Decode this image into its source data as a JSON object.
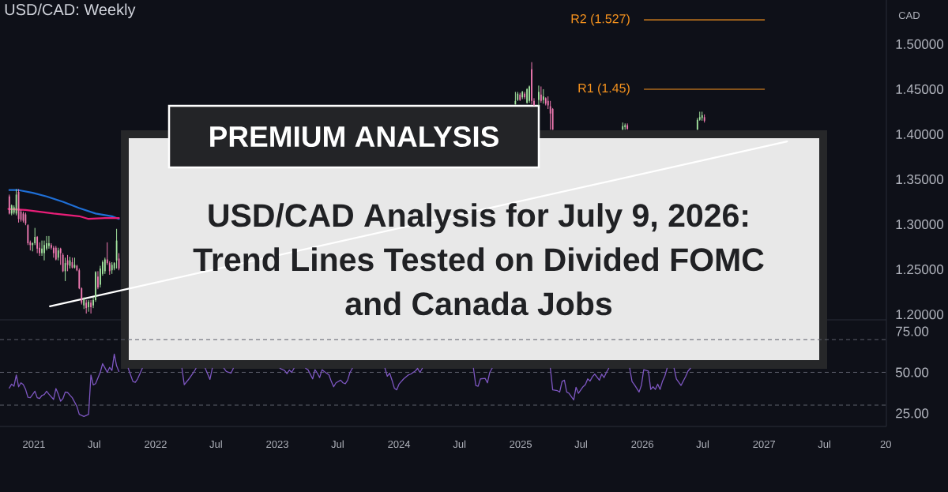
{
  "chart_data": [
    {
      "type": "candlestick",
      "title": "USD/CAD Analysis for July 9, 2026: Trend Lines Tested on Divided FOMC and Canada Jobs",
      "subtitle": "USD/CAD: Weekly",
      "annotations": [
        "PREMIUM ANALYSIS"
      ],
      "ylabel": "CAD",
      "xlim": [
        "2020-09-21",
        "2028-01-03"
      ],
      "ylim": [
        1.194,
        1.549
      ],
      "yticks": [
        {
          "value": 1.2,
          "label": "1.20000"
        },
        {
          "value": 1.25,
          "label": "1.25000"
        },
        {
          "value": 1.3,
          "label": "1.30000"
        },
        {
          "value": 1.35,
          "label": "1.35000"
        },
        {
          "value": 1.4,
          "label": "1.40000"
        },
        {
          "value": 1.45,
          "label": "1.45000"
        },
        {
          "value": 1.5,
          "label": "1.50000"
        }
      ],
      "tick_labels": "y",
      "ref_lines": [
        {
          "axis": "y",
          "value": 1.527,
          "label": "R2 (1.527)",
          "color": "#f7931e"
        },
        {
          "axis": "y",
          "value": 1.45,
          "label": "R1 (1.45)",
          "color": "#f7931e"
        }
      ],
      "series": [
        {
          "type": "line",
          "color": "#1f6fd6",
          "x": [
            "2020-10-19",
            "2020-11-16",
            "2020-12-28",
            "2021-02-08",
            "2021-03-29",
            "2021-05-17",
            "2021-07-05",
            "2021-08-23",
            "2021-09-13"
          ],
          "values": [
            1.338,
            1.338,
            1.335,
            1.331,
            1.325,
            1.318,
            1.312,
            1.309,
            1.306
          ]
        },
        {
          "type": "line",
          "color": "#e91e78",
          "x": [
            "2020-10-16",
            "2020-12-07",
            "2021-03-01",
            "2021-05-17",
            "2021-06-14",
            "2021-08-02",
            "2021-09-13"
          ],
          "values": [
            1.317,
            1.316,
            1.312,
            1.309,
            1.306,
            1.307,
            1.307
          ]
        },
        {
          "type": "line",
          "color": "#ffffff",
          "x": [
            "2021-02-18",
            "2027-03-11"
          ],
          "values": [
            1.209,
            1.392
          ]
        },
        {
          "type": "candlestick",
          "x": [
            "2020-10-19",
            "2020-10-26",
            "2020-11-02",
            "2020-11-09",
            "2020-11-16",
            "2020-11-23",
            "2020-11-30",
            "2020-12-07",
            "2020-12-14",
            "2020-12-21",
            "2020-12-28",
            "2021-01-04",
            "2021-01-11",
            "2021-01-18",
            "2021-01-25",
            "2021-02-01",
            "2021-02-08",
            "2021-02-15",
            "2021-02-22",
            "2021-03-01",
            "2021-03-08",
            "2021-03-15",
            "2021-03-22",
            "2021-03-29",
            "2021-04-05",
            "2021-04-12",
            "2021-04-19",
            "2021-04-26",
            "2021-05-03",
            "2021-05-10",
            "2021-05-17",
            "2021-05-24",
            "2021-05-31",
            "2021-06-07",
            "2021-06-14",
            "2021-06-21",
            "2021-06-28",
            "2021-07-05",
            "2021-07-12",
            "2021-07-19",
            "2021-07-26",
            "2021-08-02",
            "2021-08-09",
            "2021-08-16",
            "2021-08-23",
            "2021-08-30",
            "2021-09-06",
            "2021-09-13",
            "2024-12-16",
            "2024-12-23",
            "2024-12-30",
            "2025-01-06",
            "2025-01-13",
            "2025-01-20",
            "2025-01-27",
            "2025-02-03",
            "2025-02-10",
            "2025-02-24",
            "2025-03-03",
            "2025-03-10",
            "2025-03-17",
            "2025-03-24",
            "2025-03-31",
            "2025-04-07",
            "2025-11-03",
            "2025-11-10",
            "2025-11-17",
            "2026-06-15",
            "2026-06-22",
            "2026-06-29",
            "2026-07-06"
          ],
          "ohlc": [
            [
              1.331,
              1.333,
              1.311,
              1.312
            ],
            [
              1.312,
              1.322,
              1.31,
              1.321
            ],
            [
              1.313,
              1.321,
              1.311,
              1.319
            ],
            [
              1.312,
              1.339,
              1.31,
              1.333
            ],
            [
              1.336,
              1.339,
              1.302,
              1.306
            ],
            [
              1.314,
              1.316,
              1.303,
              1.305
            ],
            [
              1.312,
              1.314,
              1.302,
              1.304
            ],
            [
              1.311,
              1.313,
              1.299,
              1.301
            ],
            [
              1.299,
              1.3,
              1.277,
              1.279
            ],
            [
              1.28,
              1.282,
              1.271,
              1.277
            ],
            [
              1.277,
              1.28,
              1.27,
              1.279
            ],
            [
              1.279,
              1.296,
              1.277,
              1.286
            ],
            [
              1.286,
              1.287,
              1.268,
              1.273
            ],
            [
              1.274,
              1.28,
              1.265,
              1.268
            ],
            [
              1.268,
              1.282,
              1.265,
              1.273
            ],
            [
              1.268,
              1.282,
              1.26,
              1.277
            ],
            [
              1.273,
              1.287,
              1.271,
              1.279
            ],
            [
              1.276,
              1.287,
              1.273,
              1.279
            ],
            [
              1.277,
              1.279,
              1.272,
              1.274
            ],
            [
              1.274,
              1.276,
              1.263,
              1.268
            ],
            [
              1.274,
              1.276,
              1.26,
              1.261
            ],
            [
              1.263,
              1.274,
              1.26,
              1.271
            ],
            [
              1.273,
              1.274,
              1.255,
              1.268
            ],
            [
              1.266,
              1.268,
              1.247,
              1.248
            ],
            [
              1.248,
              1.263,
              1.237,
              1.257
            ],
            [
              1.26,
              1.266,
              1.248,
              1.255
            ],
            [
              1.254,
              1.264,
              1.251,
              1.26
            ],
            [
              1.258,
              1.263,
              1.251,
              1.252
            ],
            [
              1.252,
              1.263,
              1.251,
              1.255
            ],
            [
              1.254,
              1.255,
              1.248,
              1.249
            ],
            [
              1.249,
              1.251,
              1.228,
              1.229
            ],
            [
              1.229,
              1.23,
              1.211,
              1.213
            ],
            [
              1.21,
              1.219,
              1.206,
              1.217
            ],
            [
              1.213,
              1.216,
              1.201,
              1.207
            ],
            [
              1.208,
              1.216,
              1.203,
              1.214
            ],
            [
              1.213,
              1.216,
              1.201,
              1.208
            ],
            [
              1.21,
              1.219,
              1.207,
              1.216
            ],
            [
              1.216,
              1.248,
              1.214,
              1.247
            ],
            [
              1.242,
              1.248,
              1.228,
              1.23
            ],
            [
              1.233,
              1.254,
              1.23,
              1.251
            ],
            [
              1.245,
              1.26,
              1.243,
              1.258
            ],
            [
              1.248,
              1.263,
              1.245,
              1.261
            ],
            [
              1.261,
              1.28,
              1.255,
              1.257
            ],
            [
              1.257,
              1.259,
              1.244,
              1.248
            ],
            [
              1.249,
              1.258,
              1.245,
              1.255
            ],
            [
              1.251,
              1.258,
              1.249,
              1.257
            ],
            [
              1.26,
              1.295,
              1.251,
              1.282
            ],
            [
              1.262,
              1.268,
              1.249,
              1.251
            ],
            [
              1.433,
              1.447,
              1.433,
              1.437
            ],
            [
              1.438,
              1.447,
              1.437,
              1.445
            ],
            [
              1.444,
              1.446,
              1.437,
              1.438
            ],
            [
              1.441,
              1.448,
              1.439,
              1.447
            ],
            [
              1.445,
              1.447,
              1.439,
              1.441
            ],
            [
              1.435,
              1.451,
              1.434,
              1.45
            ],
            [
              1.437,
              1.454,
              1.435,
              1.453
            ],
            [
              1.472,
              1.48,
              1.433,
              1.437
            ],
            [
              1.437,
              1.44,
              1.432,
              1.432
            ],
            [
              1.438,
              1.454,
              1.432,
              1.447
            ],
            [
              1.444,
              1.453,
              1.435,
              1.437
            ],
            [
              1.438,
              1.45,
              1.434,
              1.442
            ],
            [
              1.44,
              1.441,
              1.432,
              1.434
            ],
            [
              1.437,
              1.442,
              1.428,
              1.432
            ],
            [
              1.431,
              1.437,
              1.405,
              1.423
            ],
            [
              1.428,
              1.429,
              1.405,
              1.405
            ],
            [
              1.405,
              1.413,
              1.405,
              1.409
            ],
            [
              1.408,
              1.412,
              1.405,
              1.41
            ],
            [
              1.41,
              1.412,
              1.405,
              1.406
            ],
            [
              1.405,
              1.418,
              1.405,
              1.416
            ],
            [
              1.416,
              1.425,
              1.415,
              1.419
            ],
            [
              1.418,
              1.425,
              1.415,
              1.421
            ],
            [
              1.419,
              1.422,
              1.413,
              1.415
            ]
          ],
          "colors": [
            "#f07ab2",
            "#a3e39f",
            "#a3e39f",
            "#a3e39f",
            "#f07ab2",
            "#f07ab2",
            "#f07ab2",
            "#f07ab2",
            "#f07ab2",
            "#f07ab2",
            "#a3e39f",
            "#a3e39f",
            "#f07ab2",
            "#f07ab2",
            "#a3e39f",
            "#a3e39f",
            "#a3e39f",
            "#a3e39f",
            "#f07ab2",
            "#f07ab2",
            "#f07ab2",
            "#a3e39f",
            "#f07ab2",
            "#f07ab2",
            "#a3e39f",
            "#f07ab2",
            "#a3e39f",
            "#f07ab2",
            "#a3e39f",
            "#f07ab2",
            "#f07ab2",
            "#f07ab2",
            "#a3e39f",
            "#f07ab2",
            "#a3e39f",
            "#f07ab2",
            "#a3e39f",
            "#a3e39f",
            "#f07ab2",
            "#a3e39f",
            "#a3e39f",
            "#a3e39f",
            "#f07ab2",
            "#f07ab2",
            "#a3e39f",
            "#a3e39f",
            "#a3e39f",
            "#f07ab2",
            "#a3e39f",
            "#a3e39f",
            "#f07ab2",
            "#a3e39f",
            "#f07ab2",
            "#a3e39f",
            "#a3e39f",
            "#f07ab2",
            "#f07ab2",
            "#a3e39f",
            "#f07ab2",
            "#a3e39f",
            "#f07ab2",
            "#f07ab2",
            "#f07ab2",
            "#f07ab2",
            "#a3e39f",
            "#a3e39f",
            "#f07ab2",
            "#a3e39f",
            "#a3e39f",
            "#a3e39f",
            "#f07ab2"
          ]
        }
      ]
    },
    {
      "type": "line",
      "xlim": [
        "2020-09-21",
        "2028-01-03"
      ],
      "ylim": [
        17,
        82
      ],
      "xticks": [
        {
          "value": "2021-01-01",
          "label": "2021"
        },
        {
          "value": "2021-07-01",
          "label": "Jul"
        },
        {
          "value": "2022-01-01",
          "label": "2022"
        },
        {
          "value": "2022-07-01",
          "label": "Jul"
        },
        {
          "value": "2023-01-01",
          "label": "2023"
        },
        {
          "value": "2023-07-01",
          "label": "Jul"
        },
        {
          "value": "2024-01-01",
          "label": "2024"
        },
        {
          "value": "2024-07-01",
          "label": "Jul"
        },
        {
          "value": "2025-01-01",
          "label": "2025"
        },
        {
          "value": "2025-07-01",
          "label": "Jul"
        },
        {
          "value": "2026-01-01",
          "label": "2026"
        },
        {
          "value": "2026-07-01",
          "label": "Jul"
        },
        {
          "value": "2027-01-01",
          "label": "2027"
        },
        {
          "value": "2027-07-01",
          "label": "Jul"
        },
        {
          "value": "2028-01-01",
          "label": "20"
        }
      ],
      "yticks": [
        {
          "value": 25,
          "label": "25.00"
        },
        {
          "value": 50,
          "label": "50.00"
        },
        {
          "value": 75,
          "label": "75.00"
        }
      ],
      "ref_lines": [
        {
          "axis": "y",
          "value": 70,
          "color": "#5d606b",
          "line_style": "dashed"
        },
        {
          "axis": "y",
          "value": 50,
          "color": "#5d606b",
          "line_style": "dashed"
        },
        {
          "axis": "y",
          "value": 30,
          "color": "#5d606b",
          "line_style": "dashed"
        }
      ],
      "series": [
        {
          "color": "#7e57c2",
          "x": [
            "2020-10-19",
            "2020-10-26",
            "2020-11-02",
            "2020-11-09",
            "2020-11-16",
            "2020-11-23",
            "2020-11-30",
            "2020-12-07",
            "2020-12-14",
            "2020-12-21",
            "2020-12-28",
            "2021-01-04",
            "2021-01-11",
            "2021-01-18",
            "2021-01-25",
            "2021-02-01",
            "2021-02-08",
            "2021-02-15",
            "2021-03-01",
            "2021-03-08",
            "2021-03-15",
            "2021-03-22",
            "2021-03-29",
            "2021-04-05",
            "2021-04-12",
            "2021-04-19",
            "2021-04-26",
            "2021-05-10",
            "2021-05-17",
            "2021-05-31",
            "2021-06-14",
            "2021-06-21",
            "2021-06-28",
            "2021-07-05",
            "2021-07-19",
            "2021-07-26",
            "2021-08-02",
            "2021-08-09",
            "2021-08-16",
            "2021-08-23",
            "2021-08-30",
            "2021-09-06",
            "2021-09-13",
            "2021-09-20",
            "2021-10-11",
            "2021-10-25",
            "2021-11-01",
            "2021-11-08",
            "2021-11-22",
            "2021-12-13",
            "2022-02-28",
            "2022-03-21",
            "2022-03-28",
            "2022-04-11",
            "2022-04-25",
            "2022-05-02",
            "2022-05-16",
            "2022-05-30",
            "2022-06-13",
            "2022-06-20",
            "2022-07-11",
            "2022-07-25",
            "2022-08-01",
            "2022-08-15",
            "2022-08-22",
            "2022-09-19",
            "2022-12-12",
            "2023-01-09",
            "2023-01-23",
            "2023-01-30",
            "2023-02-06",
            "2023-02-13",
            "2023-02-20",
            "2023-03-13",
            "2023-03-27",
            "2023-04-03",
            "2023-04-17",
            "2023-04-24",
            "2023-05-01",
            "2023-05-08",
            "2023-05-15",
            "2023-05-22",
            "2023-06-05",
            "2023-06-12",
            "2023-06-19",
            "2023-06-26",
            "2023-07-10",
            "2023-07-17",
            "2023-07-24",
            "2023-07-31",
            "2023-08-07",
            "2023-08-14",
            "2023-09-04",
            "2023-11-20",
            "2023-11-27",
            "2023-12-04",
            "2023-12-11",
            "2023-12-18",
            "2023-12-25",
            "2024-01-01",
            "2024-01-15",
            "2024-01-29",
            "2024-02-05",
            "2024-02-19",
            "2024-02-26",
            "2024-03-04",
            "2024-03-11",
            "2024-05-06",
            "2024-07-29",
            "2024-08-12",
            "2024-08-19",
            "2024-08-26",
            "2024-09-02",
            "2024-09-16",
            "2024-09-23",
            "2024-09-30",
            "2024-10-07",
            "2024-12-02",
            "2025-03-31",
            "2025-04-07",
            "2025-04-21",
            "2025-04-28",
            "2025-05-05",
            "2025-05-12",
            "2025-05-19",
            "2025-05-26",
            "2025-06-09",
            "2025-06-16",
            "2025-06-23",
            "2025-07-07",
            "2025-07-14",
            "2025-07-21",
            "2025-07-28",
            "2025-08-04",
            "2025-08-11",
            "2025-08-25",
            "2025-09-01",
            "2025-09-08",
            "2025-09-15",
            "2025-09-22",
            "2025-10-13",
            "2025-11-24",
            "2025-12-01",
            "2025-12-08",
            "2025-12-22",
            "2025-12-29",
            "2026-01-05",
            "2026-01-19",
            "2026-01-26",
            "2026-02-02",
            "2026-02-09",
            "2026-02-16",
            "2026-02-23",
            "2026-03-02",
            "2026-03-09",
            "2026-03-16",
            "2026-03-23",
            "2026-04-06",
            "2026-04-13",
            "2026-04-27",
            "2026-05-11",
            "2026-05-18",
            "2026-05-25"
          ],
          "values": [
            40.4,
            42.8,
            41.5,
            48.4,
            41.2,
            43.6,
            42.5,
            39.6,
            34.8,
            34.5,
            36.4,
            38.5,
            34.5,
            34.0,
            35.9,
            36.4,
            38.5,
            36.7,
            33.5,
            40.1,
            36.7,
            32.4,
            34.0,
            38.0,
            37.7,
            36.1,
            34.5,
            29.2,
            24.4,
            23.1,
            24.4,
            48.4,
            42.3,
            43.1,
            50.0,
            55.3,
            52.7,
            50.0,
            53.0,
            51.1,
            61.1,
            53.9,
            50.5,
            null,
            52.4,
            44.4,
            43.9,
            46.0,
            52.4,
            null,
            null,
            52.4,
            42.5,
            46.0,
            50.0,
            52.4,
            null,
            52.4,
            45.7,
            52.4,
            null,
            52.4,
            50.5,
            49.5,
            52.4,
            null,
            null,
            52.4,
            51.1,
            49.2,
            51.4,
            50.0,
            52.4,
            null,
            52.4,
            51.6,
            46.0,
            51.6,
            49.5,
            46.8,
            51.6,
            50.5,
            48.4,
            44.4,
            41.2,
            43.6,
            45.2,
            43.6,
            43.1,
            45.2,
            50.0,
            52.4,
            null,
            52.4,
            47.6,
            49.5,
            45.2,
            40.4,
            39.3,
            42.8,
            46.0,
            48.4,
            48.9,
            50.8,
            52.4,
            50.0,
            52.4,
            null,
            null,
            52.4,
            42.0,
            41.5,
            46.0,
            46.3,
            43.6,
            50.0,
            52.4,
            null,
            52.4,
            39.3,
            38.8,
            38.0,
            44.4,
            45.2,
            38.0,
            37.2,
            33.2,
            40.9,
            37.2,
            41.2,
            42.5,
            46.0,
            44.7,
            47.3,
            48.9,
            45.2,
            48.9,
            46.8,
            50.0,
            52.4,
            null,
            52.4,
            44.4,
            42.5,
            38.0,
            42.0,
            51.6,
            50.8,
            39.6,
            41.2,
            39.6,
            42.8,
            39.6,
            44.4,
            47.6,
            52.4,
            null,
            52.4,
            46.0,
            42.0,
            47.6,
            50.8,
            52.4
          ]
        }
      ]
    }
  ]
}
